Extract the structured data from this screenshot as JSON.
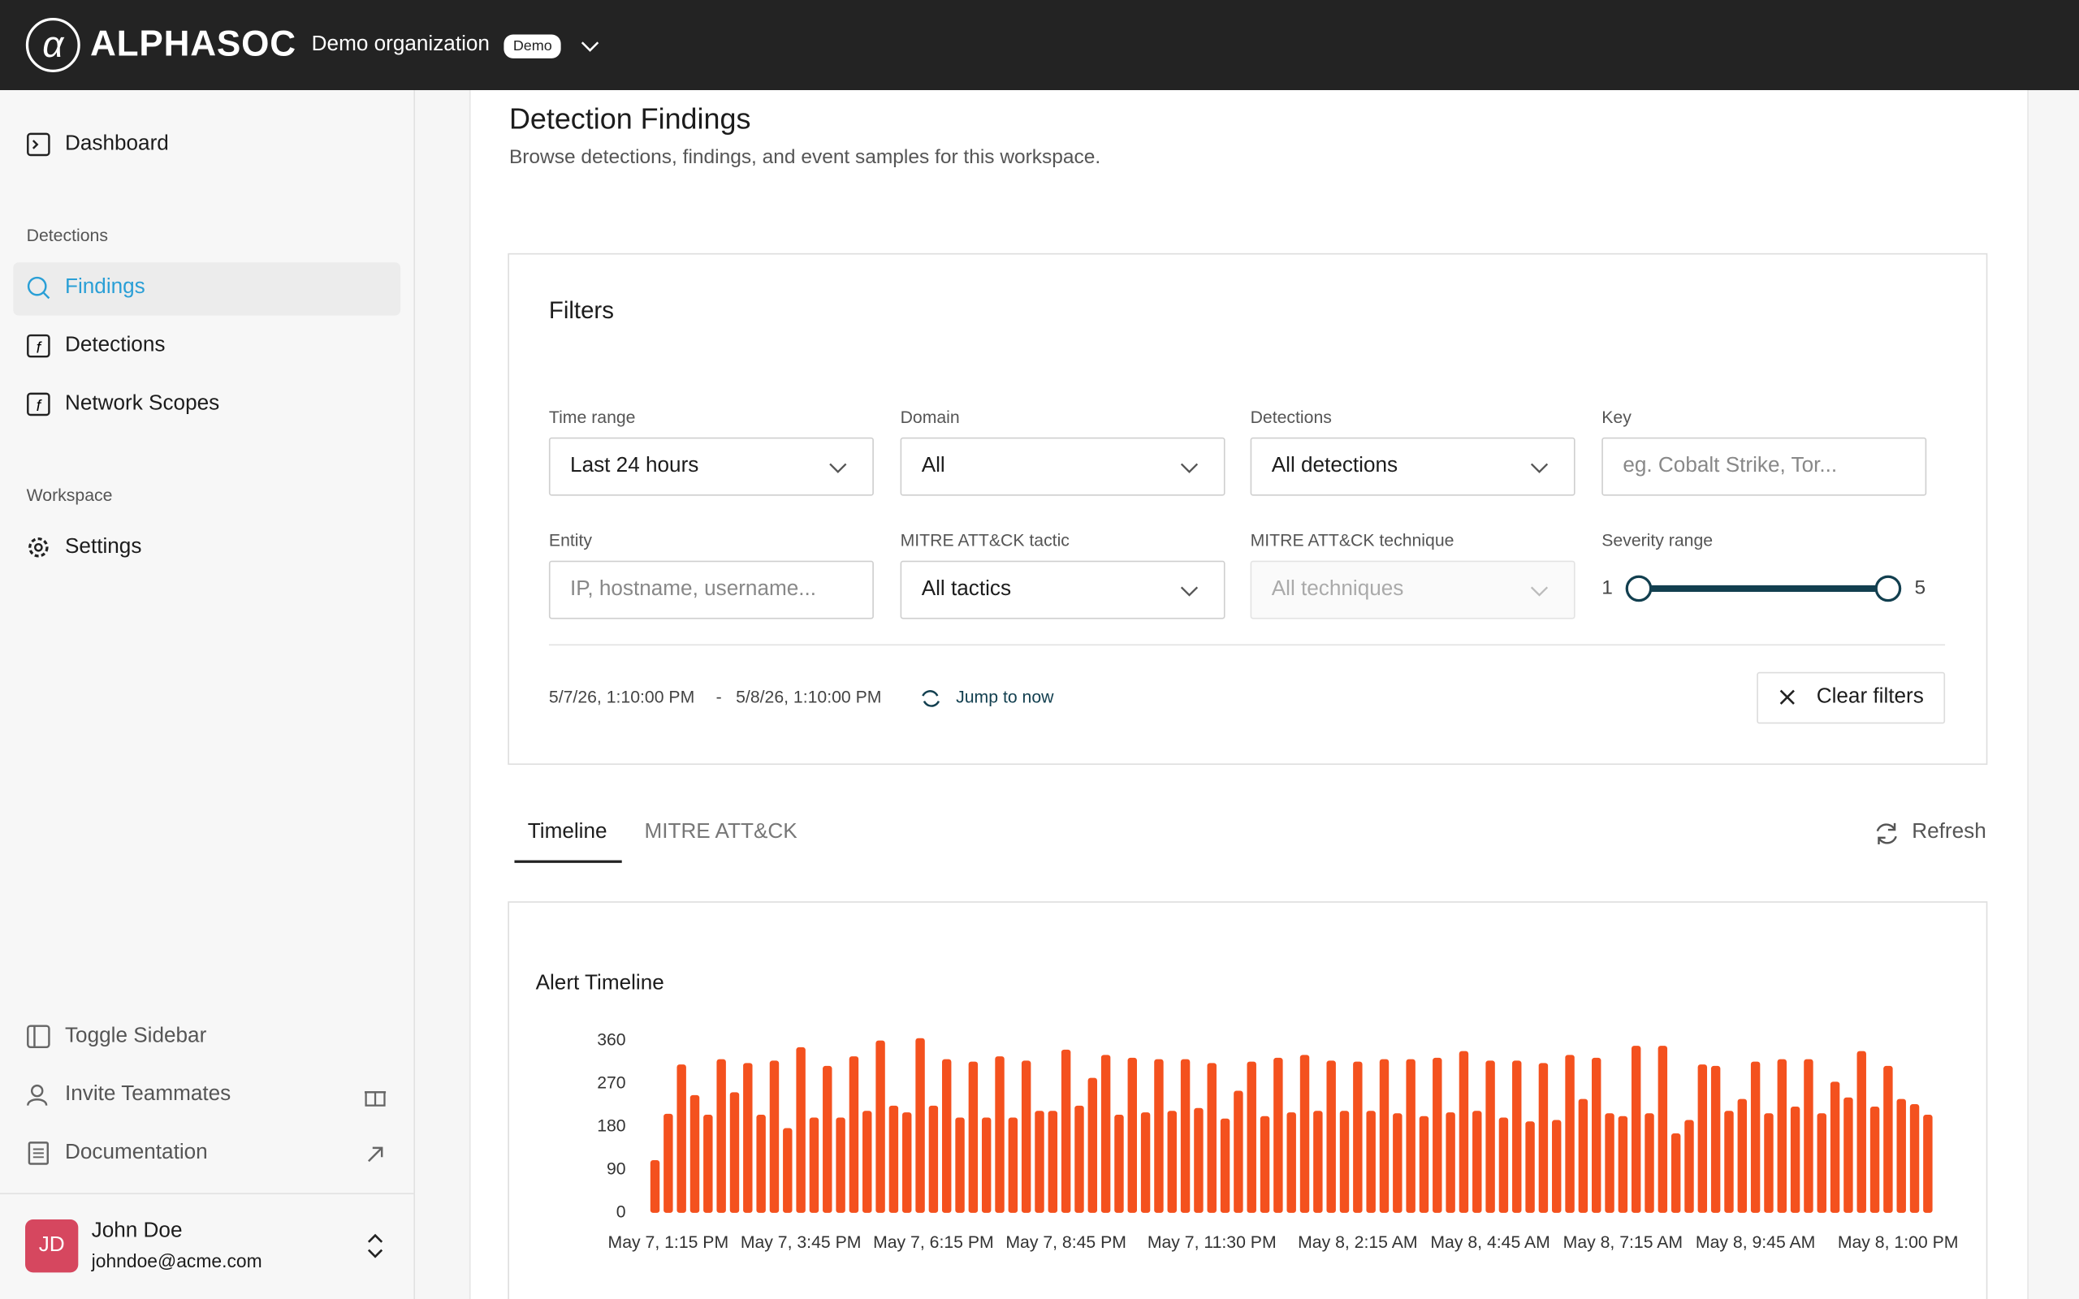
{
  "header": {
    "brand": "ALPHASOC",
    "org": "Demo organization",
    "badge": "Demo"
  },
  "sidebar": {
    "dashboard": "Dashboard",
    "sections": [
      {
        "title": "Detections",
        "items": [
          "Findings",
          "Detections",
          "Network Scopes"
        ]
      },
      {
        "title": "Workspace",
        "items": [
          "Settings"
        ]
      }
    ],
    "footer": [
      "Toggle Sidebar",
      "Invite Teammates",
      "Documentation"
    ],
    "user": {
      "initials": "JD",
      "name": "John Doe",
      "email": "johndoe@acme.com"
    }
  },
  "page": {
    "title": "Detection Findings",
    "subtitle": "Browse detections, findings, and event samples for this workspace."
  },
  "filters": {
    "title": "Filters",
    "fields": [
      {
        "label": "Time range",
        "value": "Last 24 hours"
      },
      {
        "label": "Domain",
        "value": "All"
      },
      {
        "label": "Detections",
        "value": "All detections"
      },
      {
        "label": "Key",
        "placeholder": "eg. Cobalt Strike, Tor..."
      },
      {
        "label": "Entity",
        "placeholder": "IP, hostname, username..."
      },
      {
        "label": "MITRE ATT&CK tactic",
        "value": "All tactics"
      },
      {
        "label": "MITRE ATT&CK technique",
        "placeholder": "All techniques"
      }
    ],
    "severity": {
      "label": "Severity range",
      "min": 1,
      "max": 5
    },
    "range_start": "5/7/26, 1:10:00 PM",
    "range_sep": "-",
    "range_end": "5/8/26, 1:10:00 PM",
    "jump": "Jump to now",
    "clear": "Clear filters"
  },
  "tabs": [
    "Timeline",
    "MITRE ATT&CK"
  ],
  "refresh": "Refresh",
  "chart_data": {
    "type": "bar",
    "title": "Alert Timeline",
    "color": "#f4511e",
    "categories": [
      null,
      "May 7, 1:15 PM",
      null,
      null,
      null,
      null,
      null,
      null,
      null,
      null,
      null,
      "May 7, 3:45 PM",
      null,
      null,
      null,
      null,
      null,
      null,
      null,
      null,
      null,
      "May 7, 6:15 PM",
      null,
      null,
      null,
      null,
      null,
      null,
      null,
      null,
      null,
      "May 7, 8:45 PM",
      null,
      null,
      null,
      null,
      null,
      null,
      null,
      null,
      null,
      null,
      "May 7, 11:30 PM",
      null,
      null,
      null,
      null,
      null,
      null,
      null,
      null,
      null,
      null,
      "May 8, 2:15 AM",
      null,
      null,
      null,
      null,
      null,
      null,
      null,
      null,
      null,
      "May 8, 4:45 AM",
      null,
      null,
      null,
      null,
      null,
      null,
      null,
      null,
      null,
      "May 8, 7:15 AM",
      null,
      null,
      null,
      null,
      null,
      null,
      null,
      null,
      null,
      "May 8, 9:45 AM",
      null,
      null,
      null,
      null,
      null,
      null,
      null,
      null,
      null,
      null,
      null,
      null,
      "May 8, 1:00 PM"
    ],
    "values": [
      110,
      207,
      310,
      246,
      205,
      321,
      252,
      313,
      205,
      318,
      177,
      346,
      199,
      307,
      199,
      327,
      213,
      360,
      224,
      210,
      365,
      224,
      321,
      199,
      316,
      199,
      327,
      199,
      318,
      213,
      213,
      341,
      224,
      282,
      330,
      205,
      324,
      210,
      321,
      213,
      321,
      219,
      313,
      197,
      255,
      316,
      202,
      324,
      210,
      330,
      213,
      318,
      213,
      316,
      213,
      321,
      208,
      321,
      202,
      324,
      210,
      338,
      213,
      318,
      199,
      318,
      191,
      313,
      194,
      330,
      238,
      324,
      208,
      202,
      349,
      208,
      349,
      166,
      194,
      310,
      307,
      213,
      238,
      316,
      208,
      321,
      222,
      321,
      208,
      274,
      241,
      338,
      222,
      307,
      238,
      227,
      205
    ],
    "ylim": [
      0,
      370
    ],
    "yticks": [
      0,
      90,
      180,
      270,
      360
    ],
    "grid": false
  }
}
